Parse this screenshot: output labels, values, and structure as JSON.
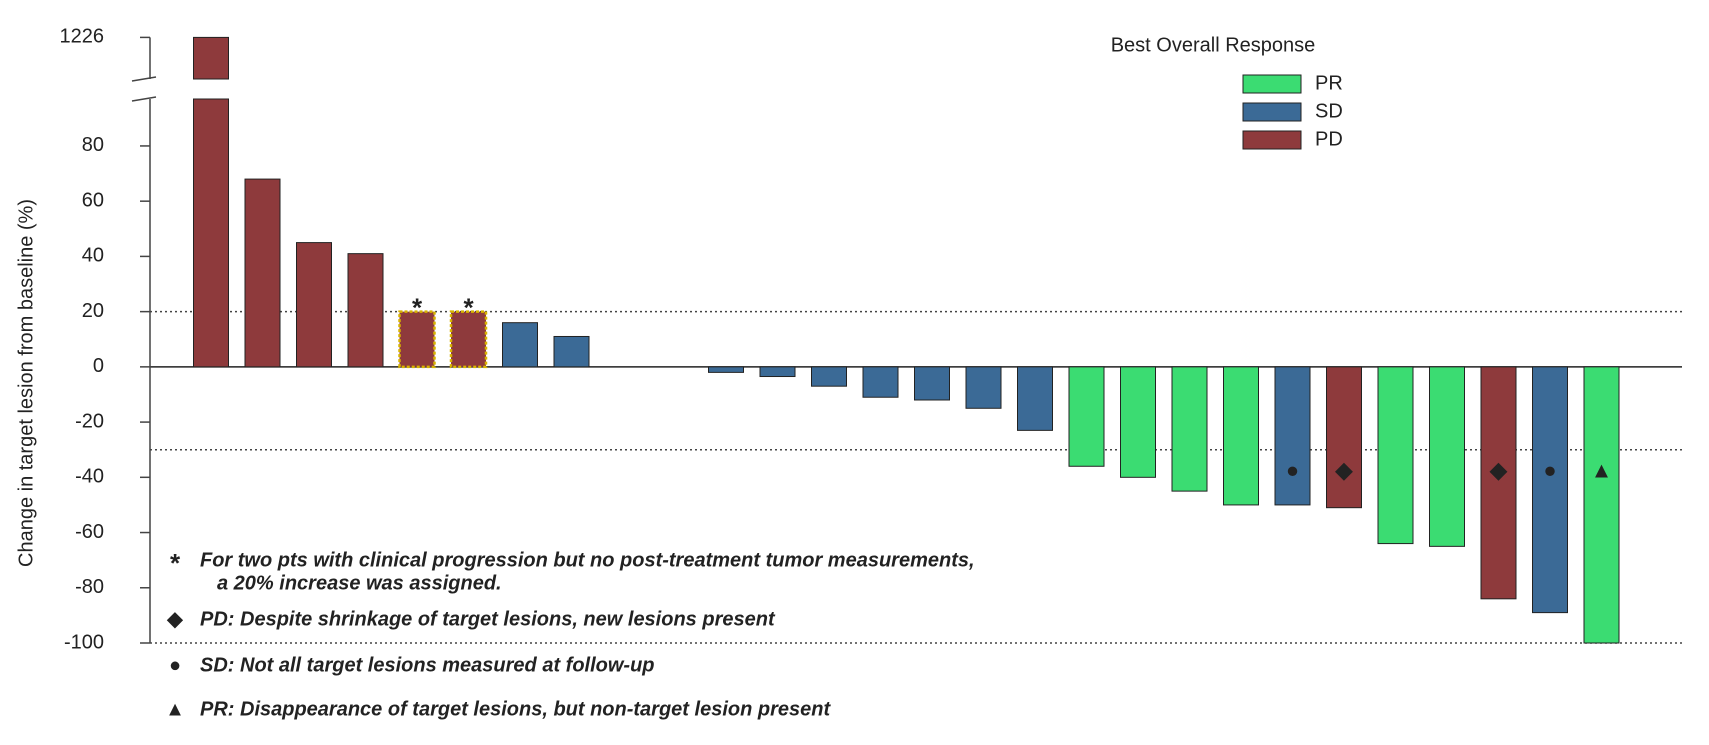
{
  "chart_data": {
    "type": "waterfall",
    "y_label": "Change in target lesion from baseline (%)",
    "ylim": [
      -100,
      97
    ],
    "yticks": [
      -100,
      -80,
      -60,
      -40,
      -20,
      0,
      20,
      40,
      60,
      80
    ],
    "ybreak_lim": [
      1210,
      1230
    ],
    "ybreak_ticks": [
      1226
    ],
    "reference_lines": [
      20,
      -30,
      -100
    ],
    "legend_title": "Best Overall Response",
    "legend_position": "upper right",
    "series": [
      {
        "name": "PR",
        "color": "#3bdc72",
        "values": [
          null,
          null,
          null,
          null,
          null,
          null,
          null,
          null,
          null,
          null,
          null,
          null,
          null,
          null,
          null,
          null,
          null,
          -36,
          -40,
          -45,
          -50,
          null,
          null,
          -64,
          -65,
          null,
          null,
          -100
        ]
      },
      {
        "name": "SD",
        "color": "#3b6a96",
        "values": [
          null,
          null,
          null,
          null,
          null,
          null,
          16,
          11,
          null,
          null,
          -2,
          -3.5,
          -7,
          -11,
          -12,
          -15,
          -23,
          null,
          null,
          null,
          null,
          -50,
          null,
          null,
          null,
          null,
          -89,
          null
        ]
      },
      {
        "name": "PD",
        "color": "#8e3a3c",
        "values": [
          1226,
          68,
          45,
          41,
          20,
          20,
          null,
          null,
          null,
          null,
          null,
          null,
          null,
          null,
          null,
          null,
          null,
          null,
          null,
          null,
          null,
          null,
          -51,
          null,
          null,
          -84,
          null,
          null
        ]
      }
    ],
    "footnotes": [
      {
        "symbol": "*",
        "lines": [
          "For two pts with clinical progression but no post-treatment tumor measurements,",
          "a 20% increase was assigned."
        ],
        "bars": [
          4,
          5
        ],
        "outline_color": "#d8b400"
      },
      {
        "symbol": "◆",
        "lines": [
          "PD: Despite shrinkage of target lesions, new lesions present"
        ],
        "bars": [
          22,
          25
        ]
      },
      {
        "symbol": "●",
        "lines": [
          "SD: Not all target lesions measured at follow-up"
        ],
        "bars": [
          21,
          26
        ]
      },
      {
        "symbol": "▲",
        "lines": [
          "PR: Disappearance of target lesions, but non-target lesion present"
        ],
        "bars": [
          27
        ]
      }
    ]
  }
}
